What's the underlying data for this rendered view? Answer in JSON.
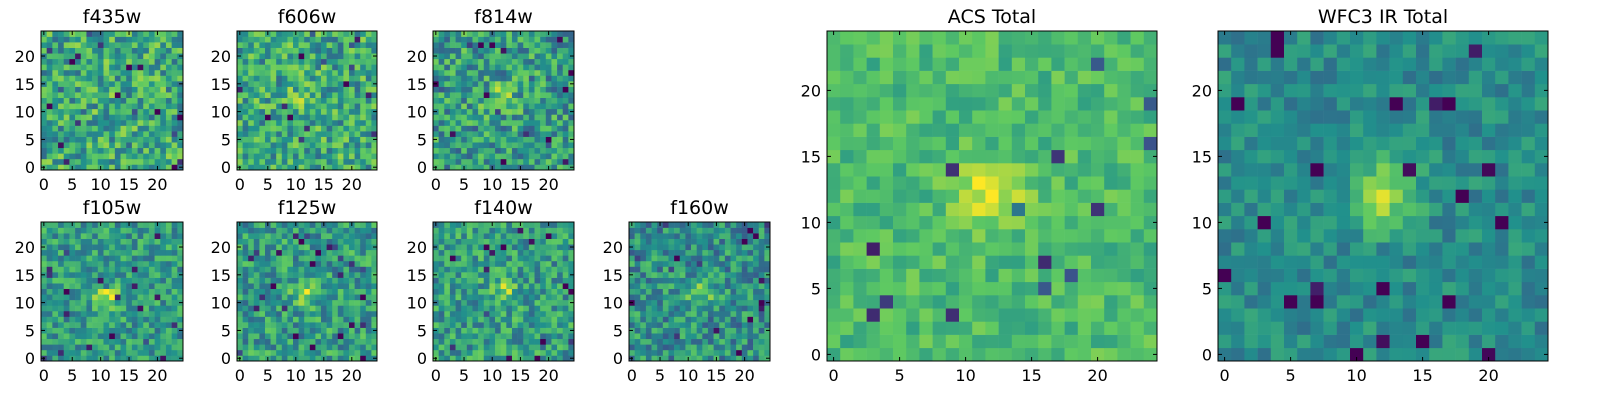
{
  "chart_data": [
    {
      "type": "heatmap",
      "title": "f435w",
      "xlim": [
        0,
        24
      ],
      "ylim": [
        0,
        24
      ],
      "xticks": [
        0,
        5,
        10,
        15,
        20
      ],
      "yticks": [
        0,
        5,
        10,
        15,
        20
      ],
      "tick_labels": [
        "0",
        "5",
        "10",
        "15",
        "20"
      ],
      "grid_size": 25,
      "source_peak": [
        11,
        12
      ],
      "source_strength": 0.02,
      "background_level": 0.6,
      "noise_level": 0.25
    },
    {
      "type": "heatmap",
      "title": "f606w",
      "xlim": [
        0,
        24
      ],
      "ylim": [
        0,
        24
      ],
      "xticks": [
        0,
        5,
        10,
        15,
        20
      ],
      "yticks": [
        0,
        5,
        10,
        15,
        20
      ],
      "tick_labels": [
        "0",
        "5",
        "10",
        "15",
        "20"
      ],
      "grid_size": 25,
      "source_peak": [
        11,
        12
      ],
      "source_strength": 0.15,
      "background_level": 0.6,
      "noise_level": 0.25
    },
    {
      "type": "heatmap",
      "title": "f814w",
      "xlim": [
        0,
        24
      ],
      "ylim": [
        0,
        24
      ],
      "xticks": [
        0,
        5,
        10,
        15,
        20
      ],
      "yticks": [
        0,
        5,
        10,
        15,
        20
      ],
      "tick_labels": [
        "0",
        "5",
        "10",
        "15",
        "20"
      ],
      "grid_size": 25,
      "source_peak": [
        11,
        12
      ],
      "source_strength": 0.3,
      "background_level": 0.55,
      "noise_level": 0.25
    },
    {
      "type": "heatmap",
      "title": "f105w",
      "xlim": [
        0,
        24
      ],
      "ylim": [
        0,
        24
      ],
      "xticks": [
        0,
        5,
        10,
        15,
        20
      ],
      "yticks": [
        0,
        5,
        10,
        15,
        20
      ],
      "tick_labels": [
        "0",
        "5",
        "10",
        "15",
        "20"
      ],
      "grid_size": 25,
      "source_peak": [
        11,
        11
      ],
      "source_strength": 0.35,
      "background_level": 0.55,
      "noise_level": 0.2
    },
    {
      "type": "heatmap",
      "title": "f125w",
      "xlim": [
        0,
        24
      ],
      "ylim": [
        0,
        24
      ],
      "xticks": [
        0,
        5,
        10,
        15,
        20
      ],
      "yticks": [
        0,
        5,
        10,
        15,
        20
      ],
      "tick_labels": [
        "0",
        "5",
        "10",
        "15",
        "20"
      ],
      "grid_size": 25,
      "source_peak": [
        12,
        12
      ],
      "source_strength": 0.25,
      "background_level": 0.55,
      "noise_level": 0.22
    },
    {
      "type": "heatmap",
      "title": "f140w",
      "xlim": [
        0,
        24
      ],
      "ylim": [
        0,
        24
      ],
      "xticks": [
        0,
        5,
        10,
        15,
        20
      ],
      "yticks": [
        0,
        5,
        10,
        15,
        20
      ],
      "tick_labels": [
        "0",
        "5",
        "10",
        "15",
        "20"
      ],
      "grid_size": 25,
      "source_peak": [
        12,
        12
      ],
      "source_strength": 0.25,
      "background_level": 0.55,
      "noise_level": 0.22
    },
    {
      "type": "heatmap",
      "title": "f160w",
      "xlim": [
        0,
        24
      ],
      "ylim": [
        0,
        24
      ],
      "xticks": [
        0,
        5,
        10,
        15,
        20
      ],
      "yticks": [
        0,
        5,
        10,
        15,
        20
      ],
      "tick_labels": [
        "0",
        "5",
        "10",
        "15",
        "20"
      ],
      "grid_size": 25,
      "source_peak": [
        12,
        12
      ],
      "source_strength": 0.3,
      "background_level": 0.5,
      "noise_level": 0.22
    },
    {
      "type": "heatmap",
      "title": "ACS Total",
      "xlim": [
        0,
        24
      ],
      "ylim": [
        0,
        24
      ],
      "xticks": [
        0,
        5,
        10,
        15,
        20
      ],
      "yticks": [
        0,
        5,
        10,
        15,
        20
      ],
      "tick_labels": [
        "0",
        "5",
        "10",
        "15",
        "20"
      ],
      "grid_size": 25,
      "source_peak": [
        12,
        12
      ],
      "source_strength": 0.3,
      "background_level": 0.68,
      "noise_level": 0.12
    },
    {
      "type": "heatmap",
      "title": "WFC3 IR Total",
      "xlim": [
        0,
        24
      ],
      "ylim": [
        0,
        24
      ],
      "xticks": [
        0,
        5,
        10,
        15,
        20
      ],
      "yticks": [
        0,
        5,
        10,
        15,
        20
      ],
      "tick_labels": [
        "0",
        "5",
        "10",
        "15",
        "20"
      ],
      "grid_size": 25,
      "source_peak": [
        12,
        12
      ],
      "source_strength": 0.4,
      "background_level": 0.48,
      "noise_level": 0.12
    }
  ],
  "colormap": [
    "#440154",
    "#3b528b",
    "#21918c",
    "#5ec962",
    "#fde725"
  ]
}
